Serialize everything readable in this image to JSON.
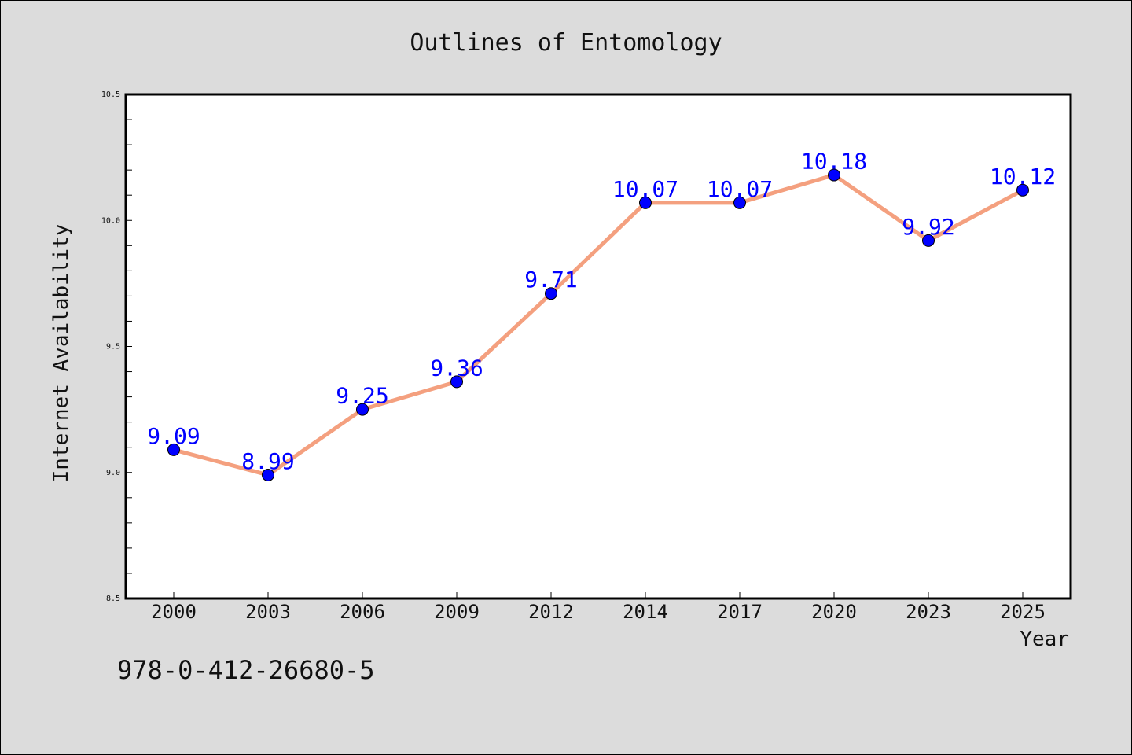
{
  "chart_data": {
    "type": "line",
    "title": "Outlines of Entomology",
    "xlabel": "Year",
    "ylabel": "Internet Availability",
    "categories": [
      "2000",
      "2003",
      "2006",
      "2009",
      "2012",
      "2014",
      "2017",
      "2020",
      "2023",
      "2025"
    ],
    "series": [
      {
        "values": [
          9.09,
          8.99,
          9.25,
          9.36,
          9.71,
          10.07,
          10.07,
          10.18,
          9.92,
          10.12
        ],
        "data_labels": [
          "9.09",
          "8.99",
          "9.25",
          "9.36",
          "9.71",
          "10.07",
          "10.07",
          "10.18",
          "9.92",
          "10.12"
        ],
        "line_color": "#f4a07f",
        "marker_color": "#0000ff"
      }
    ],
    "ylim": [
      8.5,
      10.5
    ],
    "yticks": [
      "8.5",
      "9.0",
      "9.5",
      "10.0",
      "10.5"
    ],
    "grid": false,
    "label_color": "#0000ff"
  },
  "annotation": "978-0-412-26680-5"
}
